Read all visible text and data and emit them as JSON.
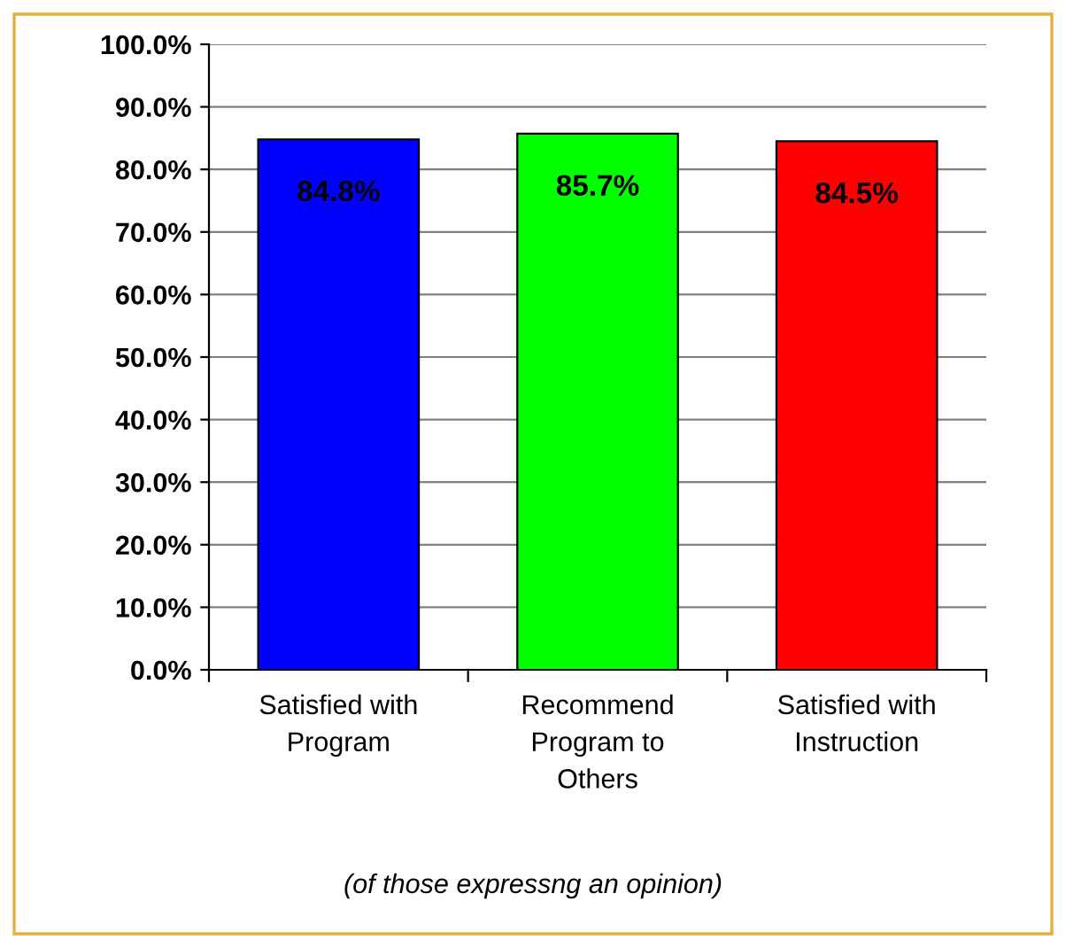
{
  "chart_data": {
    "type": "bar",
    "categories": [
      "Satisfied with\nProgram",
      "Recommend\nProgram to\nOthers",
      "Satisfied with\nInstruction"
    ],
    "values": [
      84.8,
      85.7,
      84.5
    ],
    "colors": [
      "#0000ff",
      "#00ff00",
      "#ff0000"
    ],
    "value_labels": [
      "84.8%",
      "85.7%",
      "84.5%"
    ],
    "ylim": [
      0,
      100
    ],
    "yticks": [
      {
        "value": 0,
        "label": "0.0%"
      },
      {
        "value": 10,
        "label": "10.0%"
      },
      {
        "value": 20,
        "label": "20.0%"
      },
      {
        "value": 30,
        "label": "30.0%"
      },
      {
        "value": 40,
        "label": "40.0%"
      },
      {
        "value": 50,
        "label": "50.0%"
      },
      {
        "value": 60,
        "label": "60.0%"
      },
      {
        "value": 70,
        "label": "70.0%"
      },
      {
        "value": 80,
        "label": "80.0%"
      },
      {
        "value": 90,
        "label": "90.0%"
      },
      {
        "value": 100,
        "label": "100.0%"
      }
    ],
    "grid": "y",
    "annotations": [
      "(of those expressng an opinion)"
    ]
  }
}
